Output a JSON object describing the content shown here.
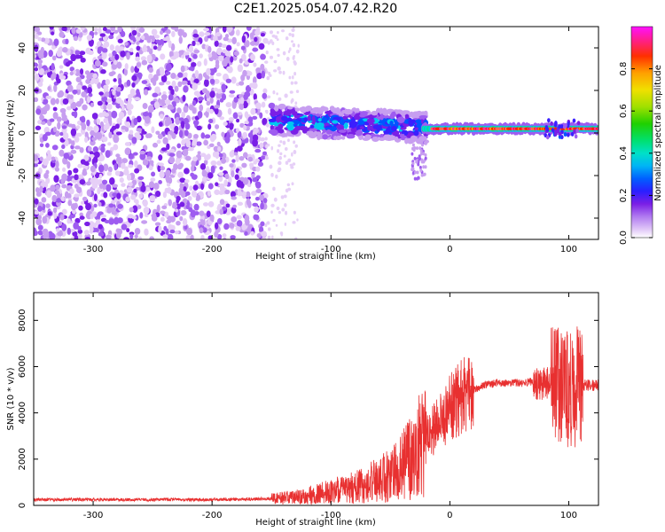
{
  "title": "C2E1.2025.054.07.42.R20",
  "colors": {
    "spectrogram_scale": [
      "#ffffff",
      "#e6cff7",
      "#c79ef0",
      "#9e5cf0",
      "#7a1fe6",
      "#3a1fff",
      "#0055ff",
      "#00c8f0",
      "#00e0a0",
      "#30d000",
      "#b0e000",
      "#f0e000",
      "#ffa000",
      "#ff2000",
      "#ff30a0",
      "#ff10ff"
    ],
    "snr_line": "#e83030"
  },
  "chart_data": [
    {
      "type": "heatmap",
      "xlabel": "Height of straight line (km)",
      "ylabel": "Frequency (Hz)",
      "xlim": [
        -350,
        125
      ],
      "ylim": [
        -50,
        50
      ],
      "xticks": [
        -300,
        -200,
        -100,
        0,
        100
      ],
      "xtick_labels": [
        "-300",
        "-200",
        "-100",
        "0",
        "100"
      ],
      "yticks": [
        -40,
        -20,
        0,
        20,
        40
      ],
      "ytick_labels": [
        "-40",
        "-20",
        "0",
        "20",
        "40"
      ],
      "colorbar": {
        "label": "Normalized spectral amplitude",
        "range": [
          0,
          1
        ],
        "ticks": [
          0.0,
          0.2,
          0.4,
          0.6,
          0.8
        ],
        "tick_labels": [
          "0.0",
          "0.2",
          "0.4",
          "0.6",
          "0.8"
        ]
      },
      "features": [
        {
          "region": "noise",
          "x_range": [
            -350,
            -155
          ],
          "y_range": [
            -50,
            50
          ],
          "amplitude": 0.15
        },
        {
          "region": "sparse noise",
          "x_range": [
            -155,
            -130
          ],
          "y_range": [
            -50,
            50
          ],
          "amplitude": 0.05
        },
        {
          "region": "tone",
          "x_range": [
            -150,
            -20
          ],
          "center_freq": [
            6,
            2
          ],
          "amplitude": 0.35
        },
        {
          "region": "tone",
          "x_range": [
            -20,
            125
          ],
          "center_freq": 2,
          "amplitude": 0.95
        }
      ]
    },
    {
      "type": "line",
      "xlabel": "Height of straight line (km)",
      "ylabel": "SNR (10 * v/v)",
      "xlim": [
        -350,
        125
      ],
      "ylim": [
        0,
        9200
      ],
      "xticks": [
        -300,
        -200,
        -100,
        0,
        100
      ],
      "xtick_labels": [
        "-300",
        "-200",
        "-100",
        "0",
        "100"
      ],
      "yticks": [
        0,
        2000,
        4000,
        6000,
        8000
      ],
      "ytick_labels": [
        "0",
        "2000",
        "4000",
        "6000",
        "8000"
      ],
      "series": [
        {
          "x": [
            -350,
            -300,
            -250,
            -200,
            -150,
            -125,
            -100,
            -75,
            -50,
            -40,
            -30,
            -20,
            -10,
            0,
            10,
            20,
            30,
            40,
            50,
            60,
            70,
            75,
            80,
            85,
            90,
            95,
            100,
            105,
            110,
            115,
            120,
            125
          ],
          "y": [
            250,
            250,
            250,
            250,
            280,
            380,
            600,
            850,
            1300,
            1700,
            2200,
            3000,
            3500,
            4200,
            4700,
            5000,
            5200,
            5300,
            5300,
            5300,
            5350,
            5200,
            5300,
            5300,
            5200,
            5100,
            5000,
            5100,
            5200,
            5200,
            5200,
            5200
          ]
        }
      ]
    }
  ]
}
